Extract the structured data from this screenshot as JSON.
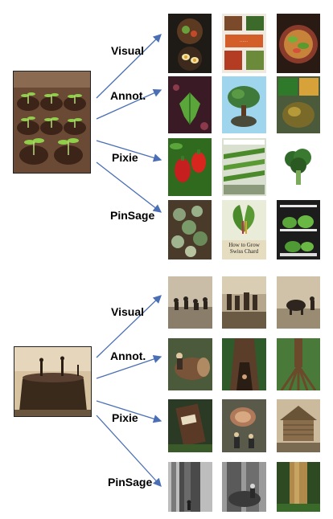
{
  "figure": {
    "panels": [
      {
        "query_image": "seedlings-in-pots",
        "methods": [
          {
            "label": "Visual",
            "results": [
              "bowl-of-greens-dish",
              "thai-recipe-collage",
              "salad-with-greens"
            ]
          },
          {
            "label": "Annot.",
            "results": [
              "green-leaf-plant",
              "bonsai-tree",
              "potted-leafy-plant-collage"
            ]
          },
          {
            "label": "Pixie",
            "results": [
              "red-bell-peppers",
              "vertical-greenhouse-rows",
              "broccoli-head"
            ]
          },
          {
            "label": "PinSage",
            "results": [
              "succulent-cluster",
              "swiss-chard-in-pot",
              "indoor-grow-shelf"
            ]
          }
        ],
        "result_caption": "How to Grow Swiss Chard"
      },
      {
        "query_image": "men-on-giant-tree-stump-sepia",
        "methods": [
          {
            "label": "Visual",
            "results": [
              "soldiers-in-field-sepia",
              "loggers-group-photo",
              "cattle-and-men-sepia"
            ]
          },
          {
            "label": "Annot.",
            "results": [
              "man-cutting-log",
              "giant-tree-trunk-forest",
              "banyan-tree-roots"
            ]
          },
          {
            "label": "Pixie",
            "results": [
              "forest-cabin-sign",
              "men-with-felled-log",
              "log-cabin-construction-sepia"
            ]
          },
          {
            "label": "PinSage",
            "results": [
              "giant-redwood-with-men-bw",
              "logger-with-giant-log-bw",
              "tall-tree-trunk-forest"
            ]
          }
        ]
      }
    ],
    "arrow_color": "#4a6fb5"
  }
}
